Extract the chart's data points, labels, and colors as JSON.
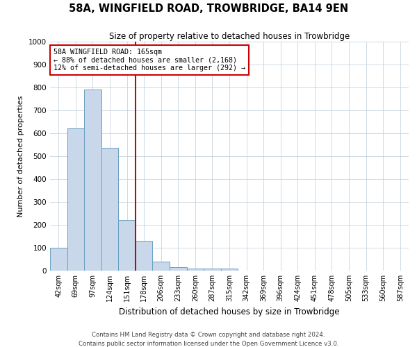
{
  "title": "58A, WINGFIELD ROAD, TROWBRIDGE, BA14 9EN",
  "subtitle": "Size of property relative to detached houses in Trowbridge",
  "xlabel": "Distribution of detached houses by size in Trowbridge",
  "ylabel": "Number of detached properties",
  "bar_color": "#c8d8ea",
  "bar_edge_color": "#6a9fc0",
  "background_color": "#ffffff",
  "grid_color": "#c8d4de",
  "annotation_box_color": "#cc0000",
  "vline_color": "#cc0000",
  "categories": [
    "42sqm",
    "69sqm",
    "97sqm",
    "124sqm",
    "151sqm",
    "178sqm",
    "206sqm",
    "233sqm",
    "260sqm",
    "287sqm",
    "315sqm",
    "342sqm",
    "369sqm",
    "396sqm",
    "424sqm",
    "451sqm",
    "478sqm",
    "505sqm",
    "533sqm",
    "560sqm",
    "587sqm"
  ],
  "values": [
    100,
    620,
    790,
    535,
    220,
    130,
    40,
    15,
    10,
    10,
    10,
    0,
    0,
    0,
    0,
    0,
    0,
    0,
    0,
    0,
    0
  ],
  "ylim": [
    0,
    1000
  ],
  "yticks": [
    0,
    100,
    200,
    300,
    400,
    500,
    600,
    700,
    800,
    900,
    1000
  ],
  "annotation_line1": "58A WINGFIELD ROAD: 165sqm",
  "annotation_line2": "← 88% of detached houses are smaller (2,168)",
  "annotation_line3": "12% of semi-detached houses are larger (292) →",
  "vline_position": 4.5,
  "footer_line1": "Contains HM Land Registry data © Crown copyright and database right 2024.",
  "footer_line2": "Contains public sector information licensed under the Open Government Licence v3.0."
}
